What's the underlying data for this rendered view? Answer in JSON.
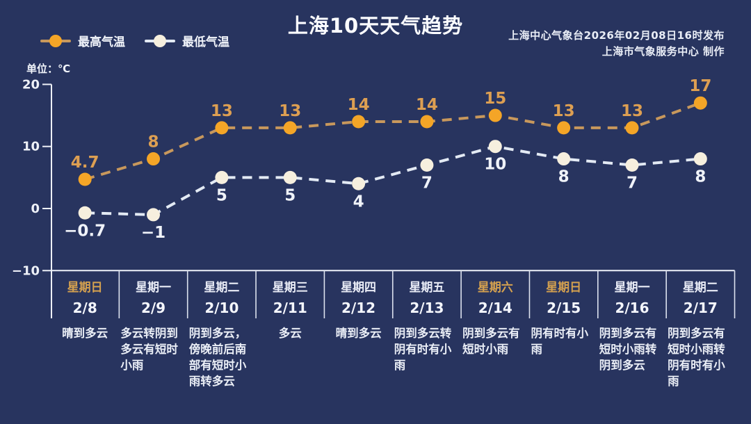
{
  "header": {
    "title": "上海10天天气趋势",
    "publisher_line1": "上海中心气象台2026年02月08日16时发布",
    "publisher_line2": "上海市气象服务中心  制作",
    "unit_label": "单位：℃"
  },
  "legend": {
    "high_label": "最高气温",
    "low_label": "最低气温"
  },
  "colors": {
    "background": "#28345f",
    "axis": "#eef1f8",
    "separator": "#dde3ef",
    "high_marker": "#f4a527",
    "high_line": "#c8985c",
    "high_label": "#dd9f52",
    "low_marker": "#f6efde",
    "low_line": "#e3eaf4",
    "low_label": "#f0f3f9",
    "weekday_text": "#e9ecf6",
    "weekend_text": "#d5a14f"
  },
  "chart_data": {
    "type": "line",
    "title": "上海10天天气趋势",
    "ylabel": "单位：℃",
    "ylim": [
      -10,
      20
    ],
    "yticks": [
      20,
      10,
      0,
      -10
    ],
    "grid": false,
    "legend_position": "top-left",
    "line_style": "dashed",
    "categories": [
      "2/8",
      "2/9",
      "2/10",
      "2/11",
      "2/12",
      "2/13",
      "2/14",
      "2/15",
      "2/16",
      "2/17"
    ],
    "weekdays": [
      "星期日",
      "星期一",
      "星期二",
      "星期三",
      "星期四",
      "星期五",
      "星期六",
      "星期日",
      "星期一",
      "星期二"
    ],
    "weekend_flags": [
      true,
      false,
      false,
      false,
      false,
      false,
      true,
      true,
      false,
      false
    ],
    "series": [
      {
        "name": "最高气温",
        "values": [
          4.7,
          8,
          13,
          13,
          14,
          14,
          15,
          13,
          13,
          17
        ]
      },
      {
        "name": "最低气温",
        "values": [
          -0.7,
          -1,
          5,
          5,
          4,
          7,
          10,
          8,
          7,
          8
        ]
      }
    ],
    "weather": [
      "晴到多云",
      "多云转阴到多云有短时小雨",
      "阴到多云，傍晚前后南部有短时小雨转多云",
      "多云",
      "晴到多云",
      "阴到多云转阴有时有小雨",
      "阴到多云有短时小雨",
      "阴有时有小雨",
      "阴到多云有短时小雨转阴到多云",
      "阴到多云有短时小雨转阴有时有小雨"
    ]
  }
}
